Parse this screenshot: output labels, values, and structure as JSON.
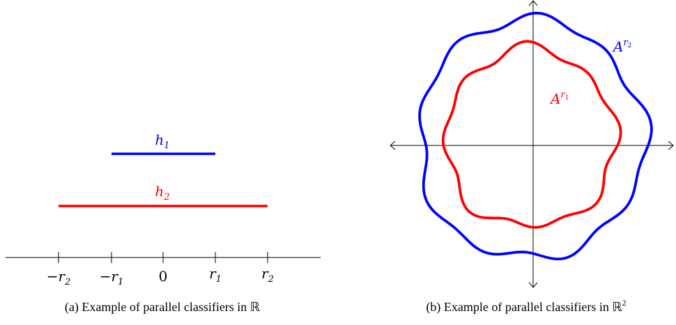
{
  "panel_a": {
    "caption": "(a) Example of parallel classifiers in ℝ",
    "tick_labels": [
      {
        "sign": "−",
        "base": "r",
        "sub": "2"
      },
      {
        "sign": "−",
        "base": "r",
        "sub": "1"
      },
      {
        "sign": "",
        "base": "0",
        "sub": ""
      },
      {
        "sign": "",
        "base": "r",
        "sub": "1"
      },
      {
        "sign": "",
        "base": "r",
        "sub": "2"
      }
    ],
    "classifiers": [
      {
        "base": "h",
        "sub": "1",
        "color": "#0000ff",
        "from": "-r1",
        "to": "r1"
      },
      {
        "base": "h",
        "sub": "2",
        "color": "#ff0000",
        "from": "-r2",
        "to": "r2"
      }
    ]
  },
  "panel_b": {
    "caption": "(b) Example of parallel classifiers in ℝ",
    "caption_sup": "2",
    "sets": [
      {
        "base": "A",
        "sup_base": "r",
        "sup_sub": "2",
        "color": "#0000ff"
      },
      {
        "base": "A",
        "sup_base": "r",
        "sup_sub": "1",
        "color": "#ff0000"
      }
    ]
  }
}
